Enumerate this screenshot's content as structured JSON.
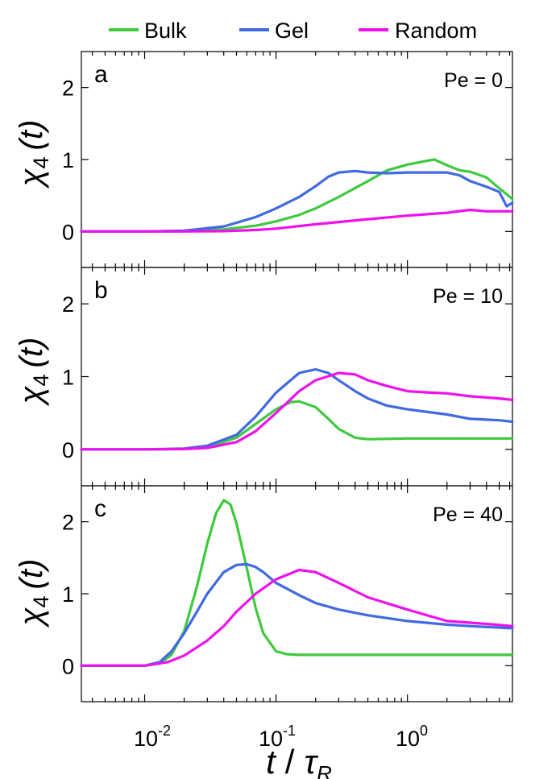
{
  "legend": [
    {
      "label": "Bulk",
      "color": "#3ec93e"
    },
    {
      "label": "Gel",
      "color": "#4169e1"
    },
    {
      "label": "Random",
      "color": "#ee11ee"
    }
  ],
  "axis_labels": {
    "y_symbol": "χ",
    "y_sub": "4",
    "y_arg": "(t)",
    "x_t": "t",
    "x_slash": "/",
    "x_tau": "τ",
    "x_sub": "R"
  },
  "x_tick_labels": [
    {
      "base": "10",
      "exp": "-2",
      "value": 0.01
    },
    {
      "base": "10",
      "exp": "-1",
      "value": 0.1
    },
    {
      "base": "10",
      "exp": "0",
      "value": 1
    }
  ],
  "chart_data": [
    {
      "type": "line",
      "panel_label": "a",
      "annotation": "Pe = 0",
      "x_scale": "log",
      "xlim": [
        0.0033,
        6.3
      ],
      "ylim": [
        -0.5,
        2.5
      ],
      "yticks": [
        0,
        1,
        2
      ],
      "series": [
        {
          "name": "Bulk",
          "color": "#3ec93e",
          "x": [
            0.0033,
            0.01,
            0.02,
            0.04,
            0.07,
            0.1,
            0.15,
            0.2,
            0.3,
            0.5,
            0.7,
            1.0,
            1.3,
            1.6,
            2.0,
            2.5,
            3.0,
            4.0,
            5.0,
            6.3
          ],
          "y": [
            0,
            0,
            0.005,
            0.03,
            0.08,
            0.14,
            0.23,
            0.32,
            0.48,
            0.7,
            0.85,
            0.93,
            0.97,
            1.0,
            0.92,
            0.85,
            0.83,
            0.75,
            0.6,
            0.45
          ]
        },
        {
          "name": "Gel",
          "color": "#4169e1",
          "x": [
            0.0033,
            0.01,
            0.02,
            0.04,
            0.07,
            0.1,
            0.15,
            0.2,
            0.25,
            0.3,
            0.4,
            0.5,
            0.7,
            1.0,
            1.5,
            2.0,
            2.5,
            3.0,
            4.0,
            5.0,
            5.7,
            6.3
          ],
          "y": [
            0,
            0,
            0.01,
            0.07,
            0.2,
            0.32,
            0.48,
            0.63,
            0.76,
            0.82,
            0.84,
            0.82,
            0.81,
            0.82,
            0.82,
            0.82,
            0.78,
            0.7,
            0.62,
            0.55,
            0.35,
            0.4
          ]
        },
        {
          "name": "Random",
          "color": "#ee11ee",
          "x": [
            0.0033,
            0.01,
            0.02,
            0.04,
            0.07,
            0.1,
            0.2,
            0.5,
            1.0,
            2.0,
            3.0,
            4.0,
            6.3
          ],
          "y": [
            0,
            0,
            0,
            0.005,
            0.02,
            0.04,
            0.1,
            0.17,
            0.22,
            0.26,
            0.3,
            0.28,
            0.28
          ]
        }
      ]
    },
    {
      "type": "line",
      "panel_label": "b",
      "annotation": "Pe = 10",
      "x_scale": "log",
      "xlim": [
        0.0033,
        6.3
      ],
      "ylim": [
        -0.5,
        2.5
      ],
      "yticks": [
        0,
        1,
        2
      ],
      "series": [
        {
          "name": "Bulk",
          "color": "#3ec93e",
          "x": [
            0.0033,
            0.01,
            0.02,
            0.03,
            0.05,
            0.07,
            0.1,
            0.13,
            0.15,
            0.2,
            0.25,
            0.3,
            0.4,
            0.5,
            1.0,
            3.0,
            6.3
          ],
          "y": [
            0,
            0,
            0.005,
            0.03,
            0.16,
            0.35,
            0.55,
            0.65,
            0.66,
            0.58,
            0.42,
            0.28,
            0.16,
            0.14,
            0.15,
            0.15,
            0.15
          ]
        },
        {
          "name": "Gel",
          "color": "#4169e1",
          "x": [
            0.0033,
            0.01,
            0.02,
            0.03,
            0.05,
            0.07,
            0.1,
            0.15,
            0.2,
            0.25,
            0.3,
            0.4,
            0.5,
            0.7,
            1.0,
            2.0,
            3.0,
            5.0,
            6.3
          ],
          "y": [
            0,
            0,
            0.01,
            0.05,
            0.2,
            0.45,
            0.78,
            1.05,
            1.1,
            1.05,
            0.95,
            0.8,
            0.7,
            0.6,
            0.55,
            0.48,
            0.42,
            0.4,
            0.38
          ]
        },
        {
          "name": "Random",
          "color": "#ee11ee",
          "x": [
            0.0033,
            0.01,
            0.02,
            0.03,
            0.05,
            0.07,
            0.1,
            0.15,
            0.2,
            0.3,
            0.4,
            0.5,
            0.7,
            1.0,
            1.5,
            2.0,
            3.0,
            5.0,
            6.3
          ],
          "y": [
            0,
            0,
            0.005,
            0.02,
            0.1,
            0.25,
            0.5,
            0.8,
            0.95,
            1.05,
            1.03,
            0.95,
            0.87,
            0.8,
            0.78,
            0.77,
            0.73,
            0.7,
            0.68
          ]
        }
      ]
    },
    {
      "type": "line",
      "panel_label": "c",
      "annotation": "Pe = 40",
      "x_scale": "log",
      "xlim": [
        0.0033,
        6.3
      ],
      "ylim": [
        -0.5,
        2.5
      ],
      "yticks": [
        0,
        1,
        2
      ],
      "series": [
        {
          "name": "Bulk",
          "color": "#3ec93e",
          "x": [
            0.0033,
            0.01,
            0.013,
            0.016,
            0.02,
            0.025,
            0.03,
            0.035,
            0.04,
            0.045,
            0.05,
            0.06,
            0.07,
            0.08,
            0.1,
            0.12,
            0.15,
            0.2,
            0.5,
            1.0,
            3.0,
            6.3
          ],
          "y": [
            0,
            0,
            0.03,
            0.15,
            0.48,
            1.1,
            1.7,
            2.12,
            2.3,
            2.24,
            1.98,
            1.35,
            0.8,
            0.45,
            0.2,
            0.16,
            0.15,
            0.15,
            0.15,
            0.15,
            0.15,
            0.15
          ]
        },
        {
          "name": "Gel",
          "color": "#4169e1",
          "x": [
            0.0033,
            0.01,
            0.013,
            0.016,
            0.02,
            0.025,
            0.03,
            0.04,
            0.05,
            0.06,
            0.07,
            0.08,
            0.1,
            0.15,
            0.2,
            0.3,
            0.5,
            1.0,
            2.0,
            3.0,
            6.3
          ],
          "y": [
            0,
            0,
            0.05,
            0.2,
            0.45,
            0.75,
            1.0,
            1.3,
            1.4,
            1.41,
            1.37,
            1.3,
            1.15,
            0.98,
            0.87,
            0.78,
            0.7,
            0.62,
            0.57,
            0.55,
            0.52
          ]
        },
        {
          "name": "Random",
          "color": "#ee11ee",
          "x": [
            0.0033,
            0.01,
            0.015,
            0.02,
            0.03,
            0.04,
            0.05,
            0.07,
            0.1,
            0.15,
            0.2,
            0.3,
            0.5,
            1.0,
            2.0,
            4.0,
            6.3
          ],
          "y": [
            0,
            0,
            0.05,
            0.14,
            0.35,
            0.55,
            0.75,
            1.0,
            1.2,
            1.33,
            1.3,
            1.15,
            0.95,
            0.78,
            0.62,
            0.58,
            0.55
          ]
        }
      ]
    }
  ]
}
